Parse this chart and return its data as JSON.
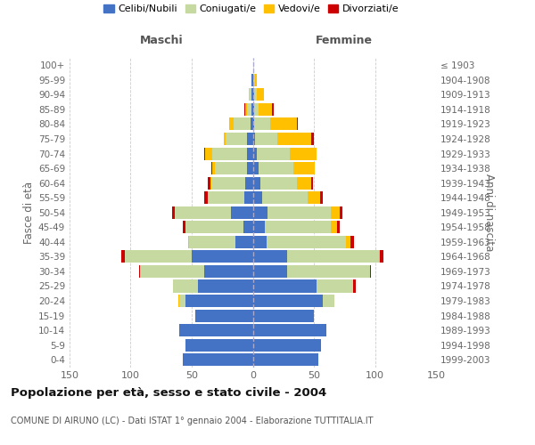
{
  "age_groups": [
    "0-4",
    "5-9",
    "10-14",
    "15-19",
    "20-24",
    "25-29",
    "30-34",
    "35-39",
    "40-44",
    "45-49",
    "50-54",
    "55-59",
    "60-64",
    "65-69",
    "70-74",
    "75-79",
    "80-84",
    "85-89",
    "90-94",
    "95-99",
    "100+"
  ],
  "birth_years": [
    "1999-2003",
    "1994-1998",
    "1989-1993",
    "1984-1988",
    "1979-1983",
    "1974-1978",
    "1969-1973",
    "1964-1968",
    "1959-1963",
    "1954-1958",
    "1949-1953",
    "1944-1948",
    "1939-1943",
    "1934-1938",
    "1929-1933",
    "1924-1928",
    "1919-1923",
    "1914-1918",
    "1909-1913",
    "1904-1908",
    "≤ 1903"
  ],
  "colors": {
    "celibi": "#4472c4",
    "coniugati": "#c5d9a0",
    "vedovi": "#ffc000",
    "divorziati": "#cc0000"
  },
  "males": {
    "celibi": [
      57,
      55,
      60,
      47,
      55,
      45,
      40,
      50,
      14,
      8,
      18,
      7,
      6,
      5,
      5,
      5,
      2,
      1,
      1,
      1,
      0
    ],
    "coniugati": [
      0,
      0,
      0,
      0,
      5,
      20,
      52,
      55,
      38,
      47,
      46,
      30,
      28,
      26,
      28,
      17,
      14,
      4,
      2,
      0,
      0
    ],
    "vedovi": [
      0,
      0,
      0,
      0,
      1,
      0,
      0,
      0,
      1,
      0,
      0,
      0,
      1,
      2,
      6,
      2,
      3,
      1,
      0,
      0,
      0
    ],
    "divorziati": [
      0,
      0,
      0,
      0,
      0,
      0,
      1,
      3,
      0,
      2,
      2,
      3,
      2,
      1,
      1,
      0,
      0,
      1,
      0,
      0,
      0
    ]
  },
  "females": {
    "nubili": [
      54,
      56,
      60,
      50,
      57,
      52,
      28,
      28,
      11,
      10,
      12,
      8,
      6,
      5,
      3,
      2,
      1,
      1,
      1,
      0,
      0
    ],
    "coniugate": [
      0,
      0,
      0,
      0,
      10,
      30,
      68,
      75,
      65,
      54,
      52,
      37,
      30,
      28,
      27,
      18,
      13,
      4,
      2,
      2,
      0
    ],
    "vedove": [
      0,
      0,
      0,
      0,
      0,
      0,
      0,
      1,
      4,
      5,
      7,
      10,
      12,
      18,
      22,
      28,
      22,
      11,
      6,
      1,
      0
    ],
    "divorziate": [
      0,
      0,
      0,
      0,
      0,
      2,
      1,
      3,
      3,
      2,
      2,
      2,
      1,
      0,
      0,
      2,
      1,
      1,
      0,
      0,
      0
    ]
  },
  "title": "Popolazione per età, sesso e stato civile - 2004",
  "subtitle": "COMUNE DI AIRUNO (LC) - Dati ISTAT 1° gennaio 2004 - Elaborazione TUTTITALIA.IT",
  "xlabel_left": "Maschi",
  "xlabel_right": "Femmine",
  "ylabel_left": "Fasce di età",
  "ylabel_right": "Anni di nascita",
  "xlim": 150,
  "legend_labels": [
    "Celibi/Nubili",
    "Coniugati/e",
    "Vedovi/e",
    "Divorziati/e"
  ],
  "background_color": "#ffffff",
  "grid_color": "#cccccc"
}
